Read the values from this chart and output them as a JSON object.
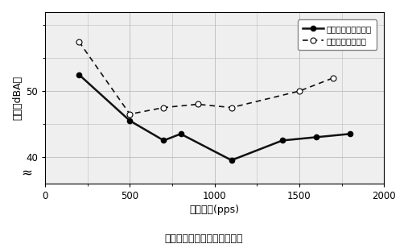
{
  "solid_x": [
    200,
    500,
    700,
    800,
    1100,
    1400,
    1600,
    1800
  ],
  "solid_y": [
    52.5,
    45.5,
    42.5,
    43.5,
    39.5,
    42.5,
    43.0,
    43.5
  ],
  "dashed_x": [
    200,
    500,
    700,
    900,
    1100,
    1500,
    1700
  ],
  "dashed_y": [
    57.5,
    46.5,
    47.5,
    48.0,
    47.5,
    50.0,
    52.0
  ],
  "xlim": [
    0,
    2000
  ],
  "ylim": [
    36,
    62
  ],
  "yticks": [
    40,
    50
  ],
  "xticks": [
    0,
    500,
    1000,
    1500,
    2000
  ],
  "xlabel": "驱动频率(pps)",
  "ylabel": "噪音（dBA）",
  "title": "噪音特性比较（两相激磁时）",
  "legend_solid": "新方式定子齿结构",
  "legend_dashed": "传统定子齿结构",
  "grid_color": "#bbbbbb",
  "line_color": "#111111",
  "bg_color": "#efefef",
  "legend_colon_solid": "：",
  "legend_colon_dashed": "："
}
